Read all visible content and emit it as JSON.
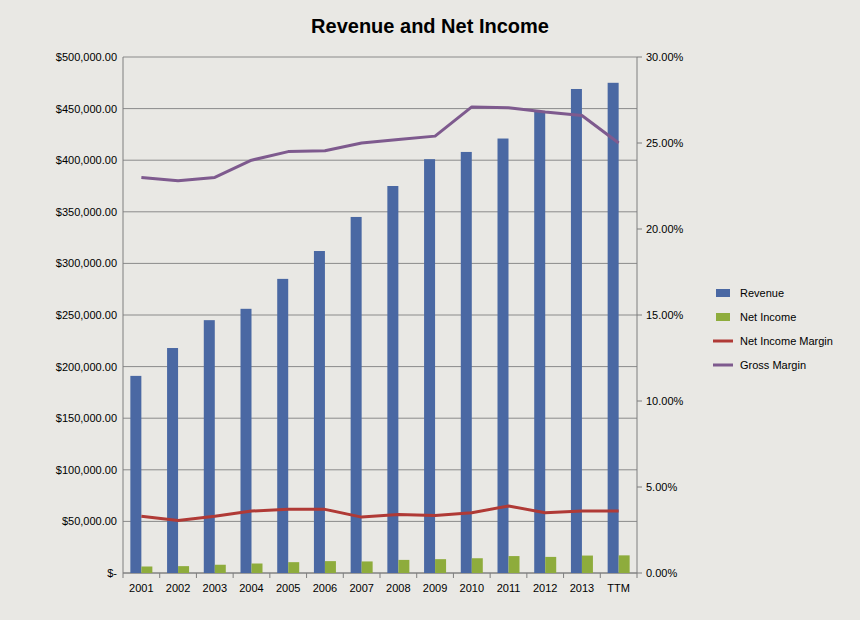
{
  "chart_data": {
    "type": "bar",
    "title": "Revenue and Net Income",
    "categories": [
      "2001",
      "2002",
      "2003",
      "2004",
      "2005",
      "2006",
      "2007",
      "2008",
      "2009",
      "2010",
      "2011",
      "2012",
      "2013",
      "TTM"
    ],
    "series": [
      {
        "name": "Revenue",
        "type": "bar",
        "color": "#4a68a3",
        "values": [
          191000,
          218000,
          245000,
          256000,
          285000,
          312000,
          345000,
          375000,
          401000,
          408000,
          421000,
          447000,
          469000,
          475000
        ]
      },
      {
        "name": "Net Income",
        "type": "bar",
        "color": "#8eac3c",
        "values": [
          6300,
          6650,
          8000,
          9200,
          10500,
          11500,
          11200,
          12700,
          13400,
          14300,
          16400,
          15600,
          16900,
          17100
        ]
      },
      {
        "name": "Net Income Margin",
        "type": "line",
        "axis": "y2",
        "color": "#b03a36",
        "values": [
          3.3,
          3.05,
          3.3,
          3.6,
          3.7,
          3.7,
          3.25,
          3.4,
          3.35,
          3.5,
          3.9,
          3.5,
          3.6,
          3.6
        ]
      },
      {
        "name": "Gross Margin",
        "type": "line",
        "axis": "y2",
        "color": "#7e5a8e",
        "values": [
          23.0,
          22.8,
          23.0,
          24.0,
          24.5,
          24.55,
          25.0,
          25.2,
          25.4,
          27.1,
          27.05,
          26.8,
          26.6,
          25.0
        ]
      }
    ],
    "ylim": [
      0,
      500000
    ],
    "yticks": [
      {
        "value": 0,
        "label": "$-"
      },
      {
        "value": 50000,
        "label": "$50,000.00"
      },
      {
        "value": 100000,
        "label": "$100,000.00"
      },
      {
        "value": 150000,
        "label": "$150,000.00"
      },
      {
        "value": 200000,
        "label": "$200,000.00"
      },
      {
        "value": 250000,
        "label": "$250,000.00"
      },
      {
        "value": 300000,
        "label": "$300,000.00"
      },
      {
        "value": 350000,
        "label": "$350,000.00"
      },
      {
        "value": 400000,
        "label": "$400,000.00"
      },
      {
        "value": 450000,
        "label": "$450,000.00"
      },
      {
        "value": 500000,
        "label": "$500,000.00"
      }
    ],
    "y2lim": [
      0,
      30
    ],
    "y2ticks": [
      {
        "value": 0,
        "label": "0.00%"
      },
      {
        "value": 5,
        "label": "5.00%"
      },
      {
        "value": 10,
        "label": "10.00%"
      },
      {
        "value": 15,
        "label": "15.00%"
      },
      {
        "value": 20,
        "label": "20.00%"
      },
      {
        "value": 25,
        "label": "25.00%"
      },
      {
        "value": 30,
        "label": "30.00%"
      }
    ],
    "grid": true,
    "legend": "right"
  }
}
